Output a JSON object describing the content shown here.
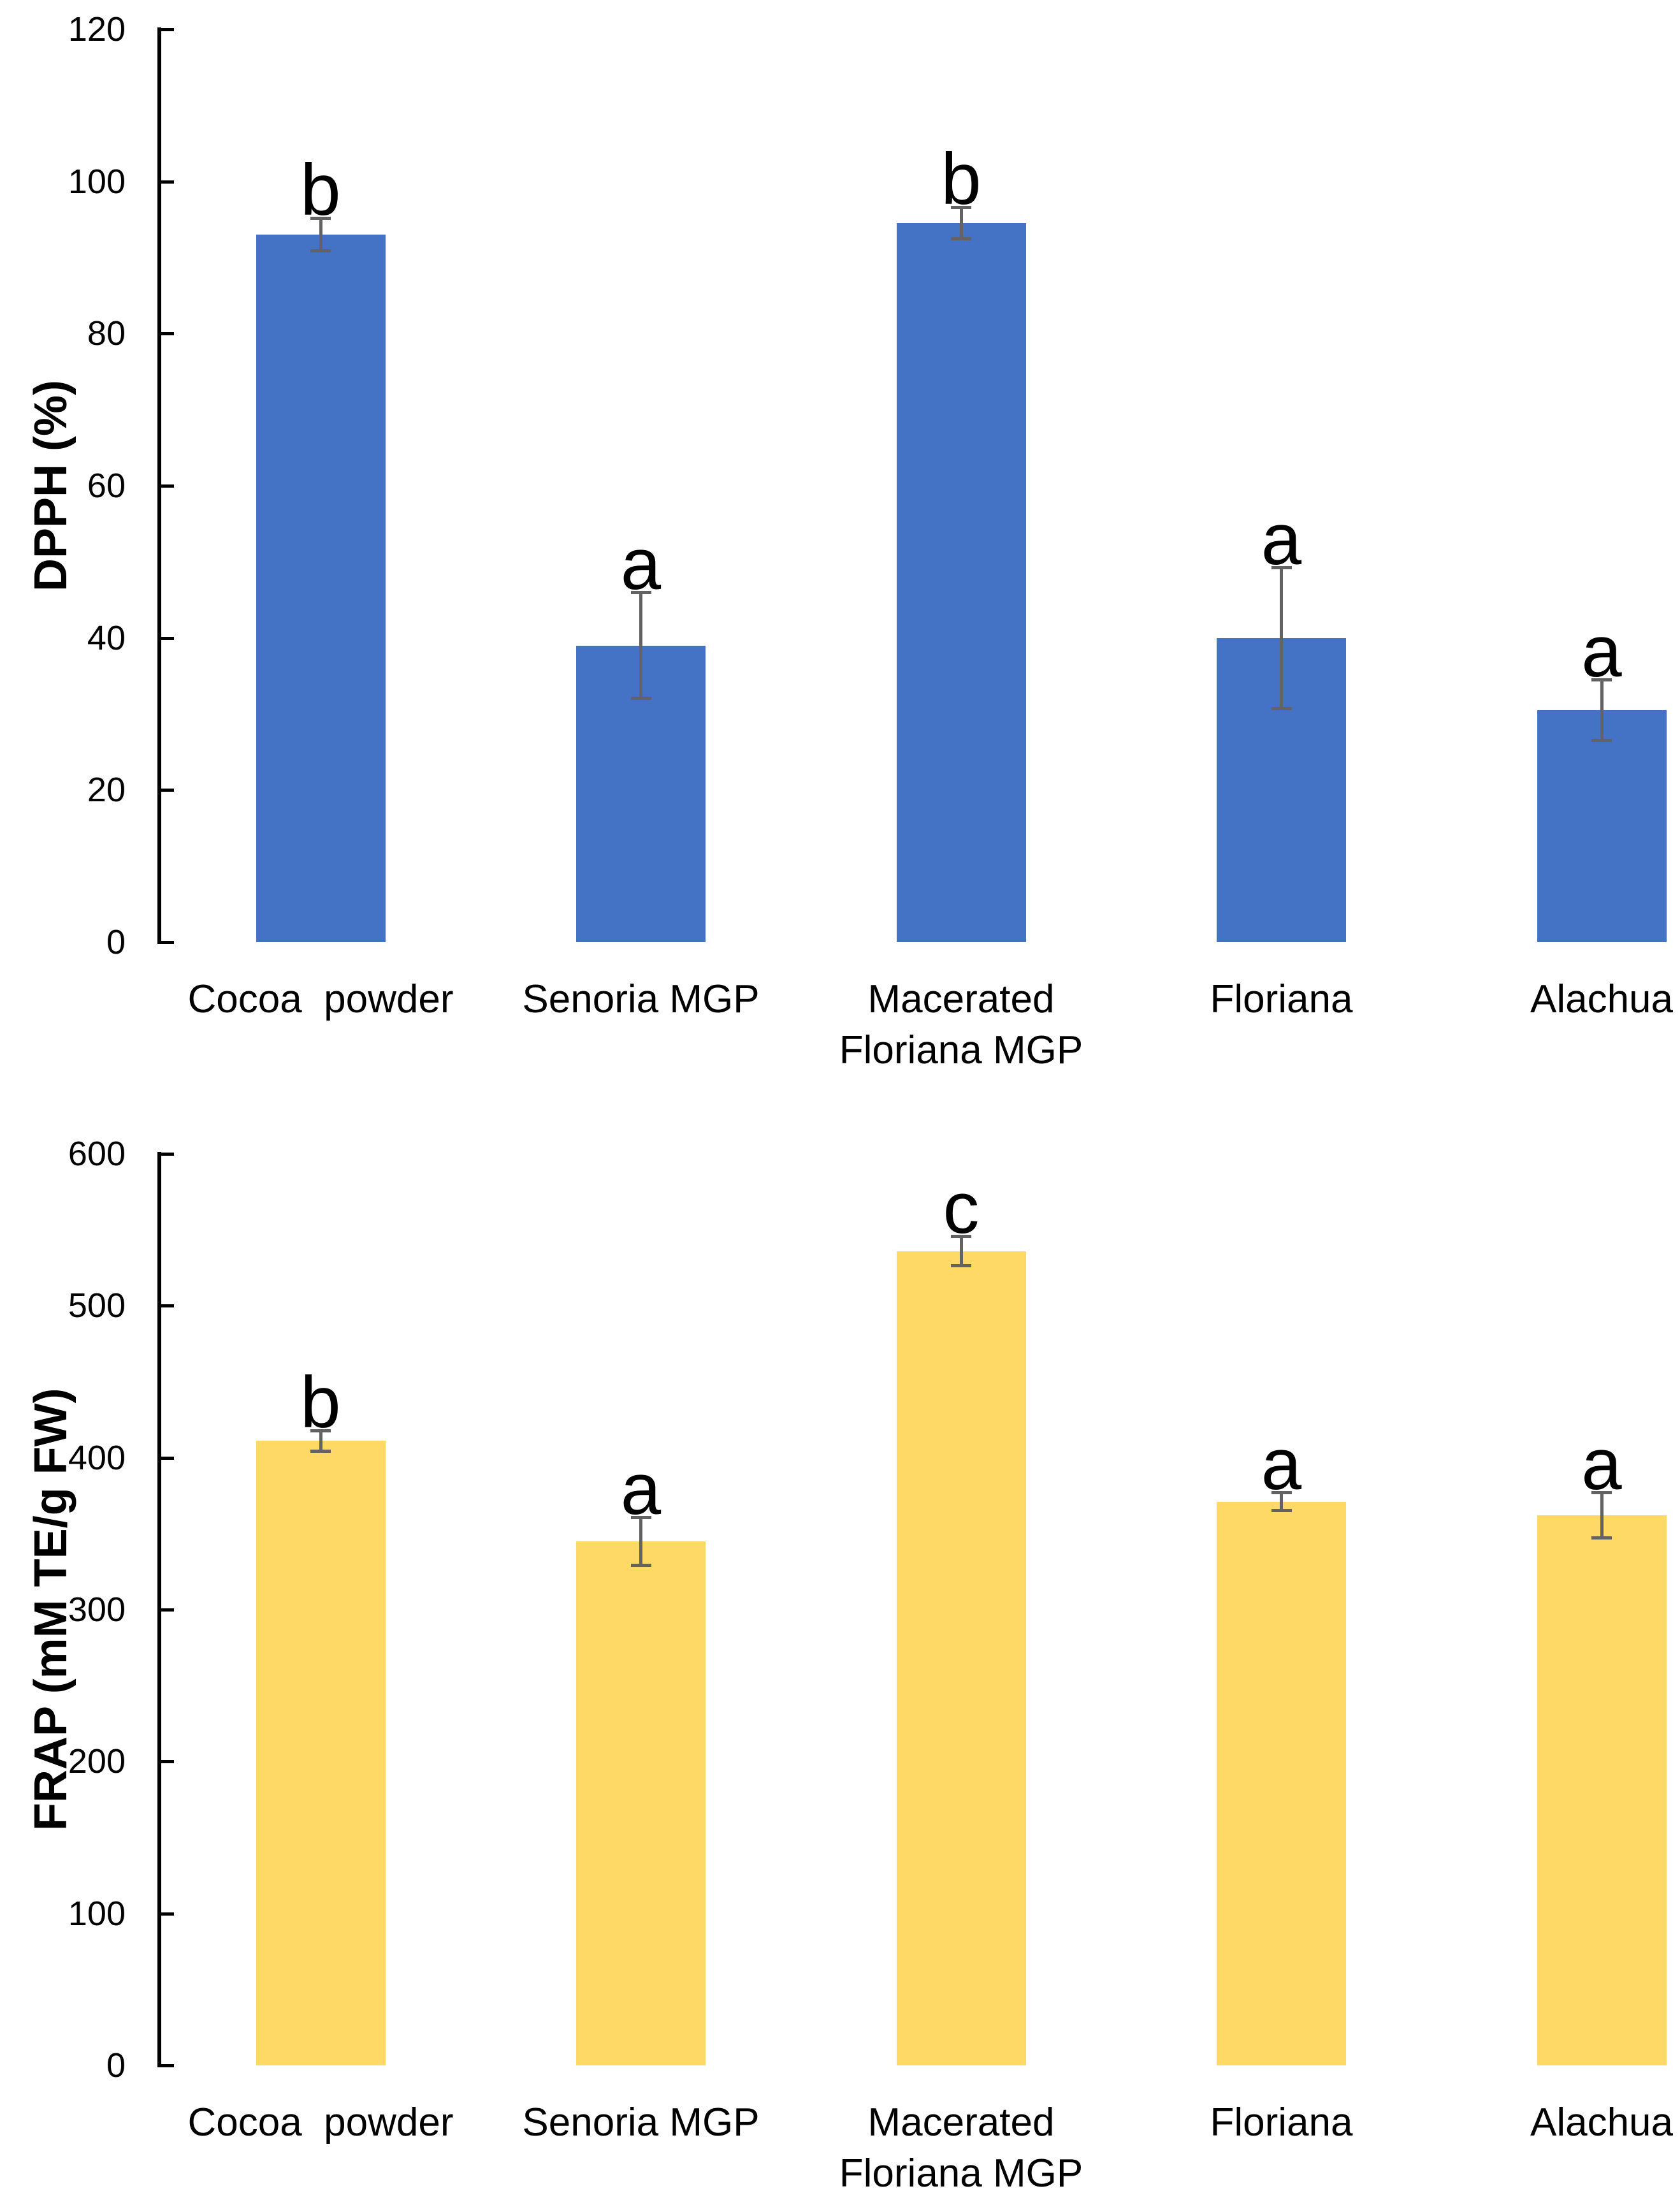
{
  "figure": {
    "background": "#ffffff",
    "text_color": "#000000"
  },
  "chart_data": [
    {
      "type": "bar",
      "title": "",
      "xlabel": "",
      "ylabel": "DPPH (%)",
      "categories": [
        "Cocoa  powder",
        "Senoria MGP",
        "Macerated\nFloriana MGP",
        "Floriana",
        "Alachua"
      ],
      "values": [
        93,
        39,
        94.5,
        40,
        30.5
      ],
      "errors": [
        2.2,
        7,
        2.1,
        9.3,
        4
      ],
      "sig_letters": [
        "b",
        "a",
        "b",
        "a",
        "a"
      ],
      "ylim": [
        0,
        120
      ],
      "y_ticks": [
        0,
        20,
        40,
        60,
        80,
        100,
        120
      ],
      "bar_color": "#4472C4",
      "error_bar_color": "#636363",
      "axis_color": "#000000",
      "grid": false,
      "legend": "none"
    },
    {
      "type": "bar",
      "title": "",
      "xlabel": "",
      "ylabel": "FRAP (mM TE/g FW)",
      "categories": [
        "Cocoa  powder",
        "Senoria MGP",
        "Macerated\nFloriana MGP",
        "Floriana",
        "Alachua"
      ],
      "values": [
        411,
        345,
        536,
        371,
        362
      ],
      "errors": [
        7,
        16,
        10,
        6,
        15
      ],
      "sig_letters": [
        "b",
        "a",
        "c",
        "a",
        "a"
      ],
      "ylim": [
        0,
        600
      ],
      "y_ticks": [
        0,
        100,
        200,
        300,
        400,
        500,
        600
      ],
      "bar_color": "#FFD966",
      "error_bar_color": "#636363",
      "axis_color": "#000000",
      "grid": false,
      "legend": "none"
    }
  ]
}
